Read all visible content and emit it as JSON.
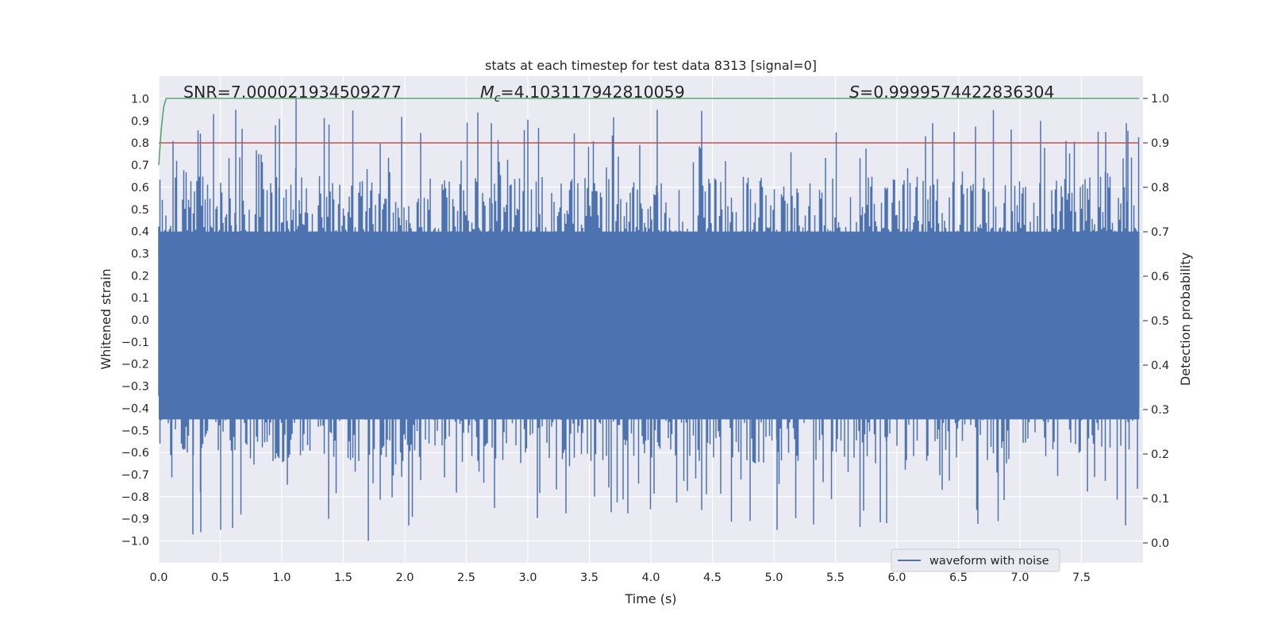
{
  "chart_data": {
    "type": "line",
    "title": "stats at each timestep for test data 8313 [signal=0]",
    "xlabel": "Time (s)",
    "ylabel": "Whitened strain",
    "y2label": "Detection probability",
    "xlim": [
      0.0,
      8.0
    ],
    "ylim": [
      -1.1,
      1.1
    ],
    "y2lim": [
      -0.05,
      1.05
    ],
    "xticks": [
      "0.0",
      "0.5",
      "1.0",
      "1.5",
      "2.0",
      "2.5",
      "3.0",
      "3.5",
      "4.0",
      "4.5",
      "5.0",
      "5.5",
      "6.0",
      "6.5",
      "7.0",
      "7.5"
    ],
    "yticks": [
      "1.0",
      "0.9",
      "0.8",
      "0.7",
      "0.6",
      "0.5",
      "0.4",
      "0.3",
      "0.2",
      "0.1",
      "0.0",
      "−0.1",
      "−0.2",
      "−0.3",
      "−0.4",
      "−0.5",
      "−0.6",
      "−0.7",
      "−0.8",
      "−0.9",
      "−1.0"
    ],
    "y2ticks": [
      "1.0",
      "0.9",
      "0.8",
      "0.7",
      "0.6",
      "0.5",
      "0.4",
      "0.3",
      "0.2",
      "0.1",
      "0.0"
    ],
    "annotations": {
      "snr": "SNR=7.000021934509277",
      "mc_symbol": "M",
      "mc_sub": "c",
      "mc_value": "=4.103117942810059",
      "s_symbol": "S",
      "s_value": "=0.9999574422836304"
    },
    "series": [
      {
        "name": "waveform with noise",
        "type": "noise-band",
        "color": "#4c72b0",
        "duration": 7.97,
        "typical_range": [
          -0.45,
          0.4
        ],
        "extremes": [
          -1.0,
          1.0
        ]
      },
      {
        "name": "detection probability",
        "color": "#55a868",
        "axis": "right",
        "x": [
          0.0,
          0.02,
          0.04,
          0.06,
          7.97
        ],
        "y": [
          0.85,
          0.93,
          0.98,
          1.0,
          1.0
        ]
      },
      {
        "name": "threshold",
        "color": "#c44e52",
        "axis": "right",
        "x": [
          0.0,
          7.97
        ],
        "y": [
          0.9,
          0.9
        ]
      }
    ],
    "legend": {
      "position": "lower-right",
      "entries": [
        "waveform with noise"
      ]
    },
    "grid": true
  },
  "colors": {
    "plot_background": "#eaeaf2",
    "grid": "#ffffff",
    "waveform": "#4c72b0",
    "probability": "#55a868",
    "threshold": "#c44e52"
  }
}
